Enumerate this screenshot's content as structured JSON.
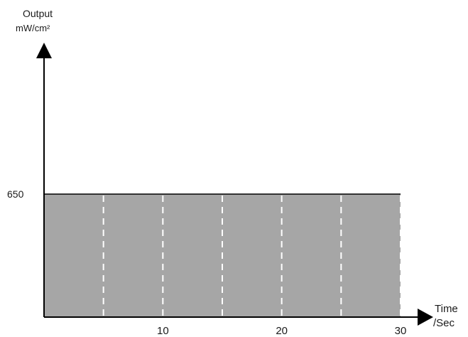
{
  "chart_data": {
    "type": "area",
    "ylabel_line1": "Output",
    "ylabel_line2": "mW/cm²",
    "xlabel_line1": "Time",
    "xlabel_line2": "/Sec",
    "x_ticks": [
      10,
      20,
      30
    ],
    "y_ticks": [
      650
    ],
    "xlim": [
      0,
      30
    ],
    "series": [
      {
        "x": [
          0,
          30
        ],
        "y": [
          650,
          650
        ]
      }
    ],
    "dashed_lines_x": [
      5,
      10,
      15,
      20,
      25,
      30
    ],
    "colors": {
      "fill": "#a6a6a6",
      "axis": "#000000",
      "dash": "#ffffff"
    }
  }
}
